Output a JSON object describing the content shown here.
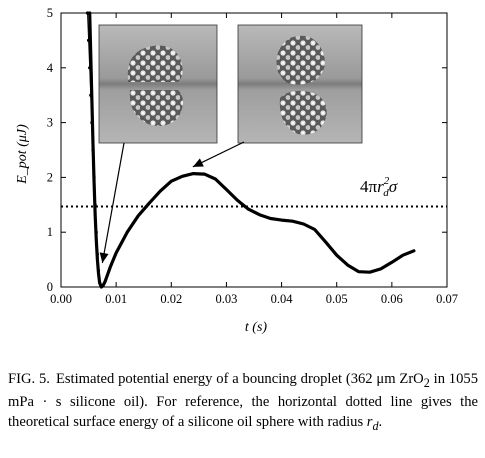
{
  "chart_data": {
    "type": "line",
    "xlabel": "t (s)",
    "ylabel": "E_pot (μJ)",
    "xlim": [
      0.0,
      0.07
    ],
    "ylim": [
      0,
      5
    ],
    "xticks": [
      "0.00",
      "0.01",
      "0.02",
      "0.03",
      "0.04",
      "0.05",
      "0.06",
      "0.07"
    ],
    "yticks": [
      "0",
      "1",
      "2",
      "3",
      "4",
      "5"
    ],
    "grid": false,
    "series": [
      {
        "name": "",
        "style": "solid thick",
        "points": [
          [
            0.0052,
            5.0
          ],
          [
            0.0054,
            4.2
          ],
          [
            0.0056,
            3.4
          ],
          [
            0.0058,
            2.6
          ],
          [
            0.006,
            1.9
          ],
          [
            0.0062,
            1.3
          ],
          [
            0.0064,
            0.85
          ],
          [
            0.0066,
            0.5
          ],
          [
            0.0068,
            0.25
          ],
          [
            0.007,
            0.08
          ],
          [
            0.0073,
            0.0
          ],
          [
            0.0076,
            0.02
          ],
          [
            0.008,
            0.1
          ],
          [
            0.009,
            0.38
          ],
          [
            0.01,
            0.62
          ],
          [
            0.012,
            1.0
          ],
          [
            0.014,
            1.3
          ],
          [
            0.016,
            1.53
          ],
          [
            0.018,
            1.75
          ],
          [
            0.02,
            1.93
          ],
          [
            0.022,
            2.02
          ],
          [
            0.024,
            2.07
          ],
          [
            0.026,
            2.06
          ],
          [
            0.028,
            1.97
          ],
          [
            0.03,
            1.78
          ],
          [
            0.032,
            1.58
          ],
          [
            0.034,
            1.42
          ],
          [
            0.036,
            1.32
          ],
          [
            0.038,
            1.25
          ],
          [
            0.04,
            1.22
          ],
          [
            0.042,
            1.2
          ],
          [
            0.044,
            1.15
          ],
          [
            0.046,
            1.05
          ],
          [
            0.048,
            0.82
          ],
          [
            0.05,
            0.58
          ],
          [
            0.052,
            0.4
          ],
          [
            0.054,
            0.28
          ],
          [
            0.056,
            0.27
          ],
          [
            0.058,
            0.33
          ],
          [
            0.06,
            0.45
          ],
          [
            0.062,
            0.58
          ],
          [
            0.064,
            0.66
          ]
        ]
      },
      {
        "name": "",
        "style": "thin with dot markers",
        "points": [
          [
            0.0048,
            5.0
          ],
          [
            0.005,
            4.5
          ],
          [
            0.0052,
            4.0
          ],
          [
            0.0054,
            3.5
          ],
          [
            0.0056,
            3.0
          ],
          [
            0.0058,
            2.5
          ],
          [
            0.006,
            2.0
          ],
          [
            0.0062,
            1.5
          ],
          [
            0.0064,
            1.0
          ],
          [
            0.0066,
            0.6
          ],
          [
            0.0068,
            0.3
          ],
          [
            0.007,
            0.08
          ]
        ]
      }
    ],
    "hline": {
      "y": 1.47,
      "style": "dotted"
    },
    "annotations": [
      {
        "text_parts": [
          "4π",
          "r",
          "d",
          "2",
          "σ"
        ],
        "x": 0.0585,
        "y": 1.75
      }
    ],
    "insets": [
      {
        "image": "droplet-bouncing-photo-1",
        "arrow_to": [
          0.0075,
          0.62
        ]
      },
      {
        "image": "droplet-bouncing-photo-2",
        "arrow_to": [
          0.025,
          2.12
        ]
      }
    ]
  },
  "caption": {
    "label": "FIG. 5.",
    "text_1": "Estimated potential energy of a bouncing droplet (362 μm ZrO",
    "sub_2": "2",
    "text_2": " in 1055 mPa · s silicone oil). For reference, the horizontal dotted line gives the theoretical surface energy of a silicone oil sphere with radius ",
    "r": "r",
    "d": "d",
    "text_end": "."
  }
}
